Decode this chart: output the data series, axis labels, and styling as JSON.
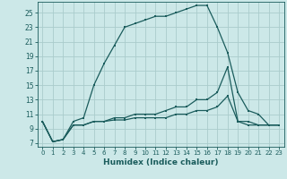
{
  "xlabel": "Humidex (Indice chaleur)",
  "bg_color": "#cce8e8",
  "grid_color": "#aacccc",
  "line_color": "#1a5c5c",
  "xlim": [
    -0.5,
    23.5
  ],
  "ylim": [
    6.5,
    26.5
  ],
  "yticks": [
    7,
    9,
    11,
    13,
    15,
    17,
    19,
    21,
    23,
    25
  ],
  "xticks": [
    0,
    1,
    2,
    3,
    4,
    5,
    6,
    7,
    8,
    9,
    10,
    11,
    12,
    13,
    14,
    15,
    16,
    17,
    18,
    19,
    20,
    21,
    22,
    23
  ],
  "series1_x": [
    0,
    1,
    2,
    3,
    4,
    5,
    6,
    7,
    8,
    9,
    10,
    11,
    12,
    13,
    14,
    15,
    16,
    17,
    18,
    19,
    20,
    21,
    22,
    23
  ],
  "series1_y": [
    10,
    7.2,
    7.5,
    10,
    10.5,
    15,
    18,
    20.5,
    23,
    23.5,
    24,
    24.5,
    24.5,
    25,
    25.5,
    26,
    26,
    23,
    19.5,
    14,
    11.5,
    11,
    9.5,
    9.5
  ],
  "series2_x": [
    0,
    1,
    2,
    3,
    4,
    5,
    6,
    7,
    8,
    9,
    10,
    11,
    12,
    13,
    14,
    15,
    16,
    17,
    18,
    19,
    20,
    21,
    22,
    23
  ],
  "series2_y": [
    10,
    7.2,
    7.5,
    9.5,
    9.5,
    10,
    10,
    10.5,
    10.5,
    11,
    11,
    11,
    11.5,
    12,
    12,
    13,
    13,
    14,
    17.5,
    10,
    10,
    9.5,
    9.5,
    9.5
  ],
  "series3_x": [
    0,
    1,
    2,
    3,
    4,
    5,
    6,
    7,
    8,
    9,
    10,
    11,
    12,
    13,
    14,
    15,
    16,
    17,
    18,
    19,
    20,
    21,
    22,
    23
  ],
  "series3_y": [
    10,
    7.2,
    7.5,
    9.5,
    9.5,
    10,
    10,
    10.2,
    10.2,
    10.5,
    10.5,
    10.5,
    10.5,
    11,
    11,
    11.5,
    11.5,
    12,
    13.5,
    10,
    9.5,
    9.5,
    9.5,
    9.5
  ],
  "tick_fontsize": 5.5,
  "xlabel_fontsize": 6.5,
  "marker_size": 2.0,
  "line_width": 0.9
}
